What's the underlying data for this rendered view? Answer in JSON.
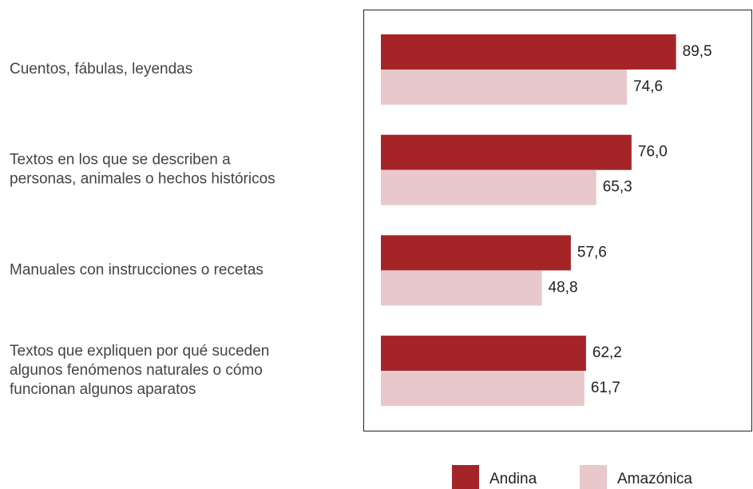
{
  "chart_data": {
    "type": "bar",
    "orientation": "horizontal",
    "categories": [
      "Cuentos, fábulas, leyendas",
      "Textos en los que se describen a\npersonas, animales o hechos históricos",
      "Manuales con instrucciones o recetas",
      "Textos que expliquen por qué suceden\nalgunos fenómenos naturales o cómo\nfuncionan algunos aparatos"
    ],
    "series": [
      {
        "name": "Andina",
        "color": "#a52428",
        "values": [
          89.5,
          76.0,
          57.6,
          62.2
        ],
        "value_labels": [
          "89,5",
          "76,0",
          "57,6",
          "62,2"
        ]
      },
      {
        "name": "Amazónica",
        "color": "#e8c8ca",
        "values": [
          74.6,
          65.3,
          48.8,
          61.7
        ],
        "value_labels": [
          "74,6",
          "65,3",
          "48,8",
          "61,7"
        ]
      }
    ],
    "xlim": [
      0,
      100
    ],
    "legend": "bottom"
  }
}
